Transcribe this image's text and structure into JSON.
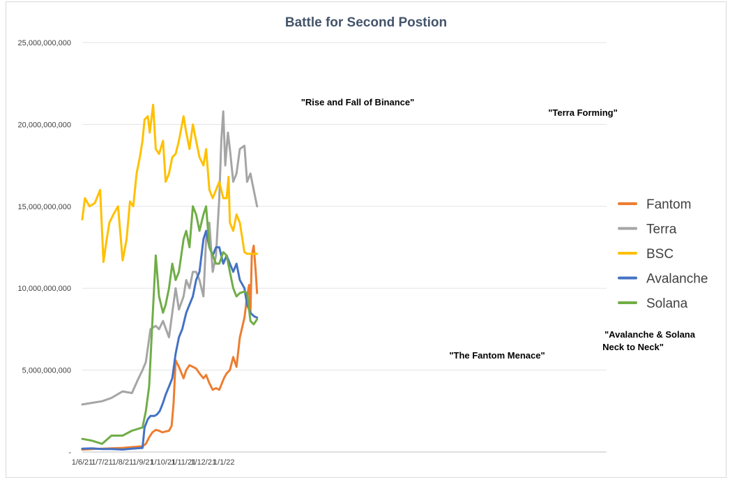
{
  "chart_data": {
    "type": "line",
    "title": "Battle for Second Postion",
    "xlabel": "",
    "ylabel": "",
    "ylim": [
      0,
      25000000000
    ],
    "yticks": [
      "-",
      "5,000,000,000",
      "10,000,000,000",
      "15,000,000,000",
      "20,000,000,000",
      "25,000,000,000"
    ],
    "ytick_values": [
      0,
      5000000000,
      10000000000,
      15000000000,
      20000000000,
      25000000000
    ],
    "x_range": [
      "1/6/21",
      "2/20/22"
    ],
    "xticks": [
      "1/6/21",
      "1/7/21",
      "1/8/21",
      "1/9/21",
      "1/10/21",
      "1/11/21",
      "1/12/21",
      "1/1/22"
    ],
    "grid": "horizontal",
    "legend_position": "right",
    "series": [
      {
        "name": "Fantom",
        "color": "#ed7d31",
        "x": [
          "2021-06-01",
          "2021-06-15",
          "2021-07-01",
          "2021-07-15",
          "2021-08-01",
          "2021-08-15",
          "2021-08-31",
          "2021-09-05",
          "2021-09-10",
          "2021-09-15",
          "2021-09-20",
          "2021-09-25",
          "2021-09-30",
          "2021-10-05",
          "2021-10-10",
          "2021-10-14",
          "2021-10-17",
          "2021-10-20",
          "2021-10-25",
          "2021-11-01",
          "2021-11-05",
          "2021-11-10",
          "2021-11-15",
          "2021-11-20",
          "2021-11-25",
          "2021-12-01",
          "2021-12-05",
          "2021-12-10",
          "2021-12-15",
          "2021-12-20",
          "2021-12-25",
          "2022-01-01",
          "2022-01-05",
          "2022-01-10",
          "2022-01-15",
          "2022-01-20",
          "2022-01-25",
          "2022-02-01",
          "2022-02-05",
          "2022-02-08",
          "2022-02-10",
          "2022-02-12",
          "2022-02-15",
          "2022-02-18",
          "2022-02-20"
        ],
        "y": [
          0.15,
          0.18,
          0.2,
          0.22,
          0.25,
          0.3,
          0.35,
          0.5,
          0.9,
          1.2,
          1.35,
          1.3,
          1.2,
          1.25,
          1.3,
          1.6,
          3.0,
          5.6,
          5.2,
          4.5,
          5.0,
          5.3,
          5.2,
          5.1,
          4.8,
          4.5,
          4.7,
          4.2,
          3.8,
          3.9,
          3.8,
          4.5,
          4.8,
          5.0,
          5.8,
          5.2,
          7.0,
          8.2,
          9.5,
          10.2,
          8.5,
          12.0,
          12.6,
          11.0,
          9.7
        ]
      },
      {
        "name": "Terra",
        "color": "#a5a5a5",
        "x": [
          "2021-06-01",
          "2021-06-15",
          "2021-07-01",
          "2021-07-15",
          "2021-08-01",
          "2021-08-15",
          "2021-08-25",
          "2021-08-31",
          "2021-09-05",
          "2021-09-12",
          "2021-09-20",
          "2021-09-25",
          "2021-10-01",
          "2021-10-10",
          "2021-10-15",
          "2021-10-20",
          "2021-10-25",
          "2021-11-01",
          "2021-11-05",
          "2021-11-10",
          "2021-11-15",
          "2021-11-20",
          "2021-11-25",
          "2021-12-01",
          "2021-12-05",
          "2021-12-10",
          "2021-12-15",
          "2021-12-20",
          "2021-12-25",
          "2021-12-28",
          "2021-12-31",
          "2022-01-03",
          "2022-01-07",
          "2022-01-10",
          "2022-01-15",
          "2022-01-20",
          "2022-01-25",
          "2022-02-01",
          "2022-02-05",
          "2022-02-10",
          "2022-02-15",
          "2022-02-20"
        ],
        "y": [
          2.9,
          3.0,
          3.1,
          3.3,
          3.7,
          3.6,
          4.5,
          5.0,
          5.5,
          7.5,
          7.7,
          7.5,
          8.0,
          7.0,
          8.5,
          10.0,
          8.7,
          9.5,
          10.5,
          10.0,
          11.0,
          11.0,
          10.5,
          9.5,
          13.0,
          14.0,
          11.0,
          12.0,
          15.5,
          19.0,
          20.8,
          17.5,
          19.5,
          18.5,
          16.5,
          17.0,
          18.5,
          18.7,
          16.5,
          17.0,
          16.0,
          15.0
        ]
      },
      {
        "name": "BSC",
        "color": "#ffc000",
        "x": [
          "2021-06-01",
          "2021-06-05",
          "2021-06-12",
          "2021-06-20",
          "2021-06-28",
          "2021-07-03",
          "2021-07-08",
          "2021-07-12",
          "2021-07-18",
          "2021-07-25",
          "2021-08-01",
          "2021-08-07",
          "2021-08-12",
          "2021-08-17",
          "2021-08-22",
          "2021-08-27",
          "2021-08-31",
          "2021-09-03",
          "2021-09-08",
          "2021-09-11",
          "2021-09-16",
          "2021-09-20",
          "2021-09-25",
          "2021-10-01",
          "2021-10-05",
          "2021-10-10",
          "2021-10-15",
          "2021-10-20",
          "2021-10-25",
          "2021-11-01",
          "2021-11-05",
          "2021-11-10",
          "2021-11-15",
          "2021-11-20",
          "2021-11-25",
          "2021-12-01",
          "2021-12-05",
          "2021-12-10",
          "2021-12-15",
          "2021-12-20",
          "2021-12-25",
          "2021-12-31",
          "2022-01-05",
          "2022-01-08",
          "2022-01-10",
          "2022-01-15",
          "2022-01-20",
          "2022-01-25",
          "2022-02-01",
          "2022-02-05",
          "2022-02-10",
          "2022-02-15",
          "2022-02-20"
        ],
        "y": [
          14.2,
          15.5,
          15.0,
          15.2,
          16.0,
          11.6,
          13.0,
          14.0,
          14.5,
          15.0,
          11.7,
          13.0,
          15.3,
          15.0,
          17.0,
          18.0,
          19.0,
          20.3,
          20.5,
          19.5,
          21.2,
          18.5,
          18.2,
          19.0,
          16.5,
          17.0,
          18.0,
          18.2,
          19.0,
          20.5,
          19.5,
          18.5,
          20.0,
          19.0,
          18.0,
          17.5,
          18.5,
          16.0,
          15.5,
          16.0,
          16.5,
          15.5,
          15.5,
          16.8,
          14.0,
          13.5,
          14.5,
          14.0,
          12.2,
          12.1,
          12.1,
          12.1,
          12.1
        ]
      },
      {
        "name": "Avalanche",
        "color": "#4472c4",
        "x": [
          "2021-06-01",
          "2021-06-15",
          "2021-07-01",
          "2021-07-15",
          "2021-08-01",
          "2021-08-15",
          "2021-08-31",
          "2021-09-03",
          "2021-09-08",
          "2021-09-12",
          "2021-09-18",
          "2021-09-22",
          "2021-09-26",
          "2021-10-01",
          "2021-10-05",
          "2021-10-10",
          "2021-10-15",
          "2021-10-20",
          "2021-10-25",
          "2021-10-30",
          "2021-11-05",
          "2021-11-10",
          "2021-11-15",
          "2021-11-20",
          "2021-11-25",
          "2021-12-01",
          "2021-12-05",
          "2021-12-10",
          "2021-12-15",
          "2021-12-20",
          "2021-12-25",
          "2021-12-31",
          "2022-01-05",
          "2022-01-10",
          "2022-01-15",
          "2022-01-20",
          "2022-01-25",
          "2022-02-01",
          "2022-02-05",
          "2022-02-10",
          "2022-02-15",
          "2022-02-20"
        ],
        "y": [
          0.2,
          0.22,
          0.18,
          0.18,
          0.15,
          0.2,
          0.25,
          1.5,
          2.0,
          2.2,
          2.2,
          2.3,
          2.5,
          3.0,
          3.5,
          4.0,
          4.5,
          6.0,
          7.0,
          7.5,
          8.5,
          9.0,
          9.5,
          10.5,
          11.0,
          13.0,
          13.5,
          12.5,
          12.0,
          12.5,
          12.5,
          11.5,
          12.0,
          11.5,
          11.0,
          11.5,
          10.5,
          10.0,
          9.0,
          8.5,
          8.3,
          8.2
        ]
      },
      {
        "name": "Solana",
        "color": "#70ad47",
        "x": [
          "2021-06-01",
          "2021-06-15",
          "2021-07-01",
          "2021-07-15",
          "2021-08-01",
          "2021-08-15",
          "2021-08-31",
          "2021-09-05",
          "2021-09-10",
          "2021-09-15",
          "2021-09-20",
          "2021-09-25",
          "2021-10-01",
          "2021-10-05",
          "2021-10-10",
          "2021-10-15",
          "2021-10-20",
          "2021-10-25",
          "2021-11-01",
          "2021-11-05",
          "2021-11-10",
          "2021-11-15",
          "2021-11-20",
          "2021-11-25",
          "2021-12-01",
          "2021-12-05",
          "2021-12-10",
          "2021-12-15",
          "2021-12-20",
          "2021-12-25",
          "2021-12-31",
          "2022-01-05",
          "2022-01-10",
          "2022-01-15",
          "2022-01-20",
          "2022-01-25",
          "2022-02-01",
          "2022-02-05",
          "2022-02-10",
          "2022-02-15",
          "2022-02-20"
        ],
        "y": [
          0.8,
          0.7,
          0.5,
          1.0,
          1.0,
          1.3,
          1.5,
          2.5,
          4.0,
          8.0,
          12.0,
          9.5,
          8.5,
          9.0,
          10.0,
          11.5,
          10.5,
          11.0,
          13.0,
          13.5,
          12.5,
          15.0,
          14.5,
          13.5,
          14.5,
          15.0,
          12.5,
          12.0,
          11.5,
          11.5,
          12.2,
          12.0,
          11.0,
          10.0,
          9.5,
          9.7,
          9.8,
          9.7,
          8.0,
          7.8,
          8.1
        ]
      }
    ],
    "annotations": [
      {
        "text": "\"Rise and Fall of Binance\""
      },
      {
        "text": "\"Terra Forming\""
      },
      {
        "text": "\"The Fantom Menace\""
      },
      {
        "text": "\"Avalanche & Solana"
      },
      {
        "text": "Neck to Neck\""
      }
    ]
  }
}
